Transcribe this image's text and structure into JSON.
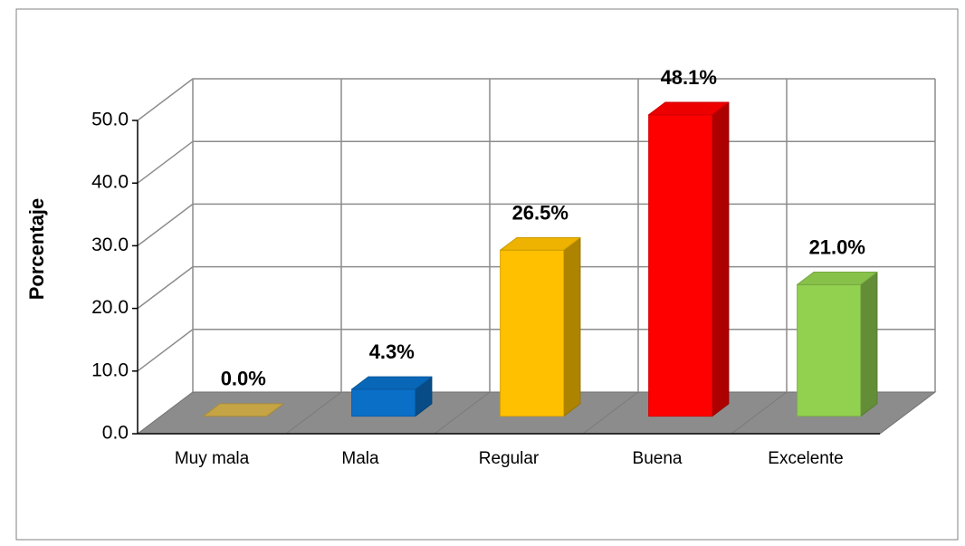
{
  "chart_data": {
    "type": "bar3d",
    "y_label": "Porcentaje",
    "categories": [
      "Muy mala",
      "Mala",
      "Regular",
      "Buena",
      "Excelente"
    ],
    "values": [
      0,
      4.3,
      26.5,
      48.1,
      21.0
    ],
    "value_labels": [
      "0.0%",
      "4.3%",
      "26.5%",
      "48.1%",
      "21.0%"
    ],
    "colors": [
      "#d4b04a",
      "#0a6fc6",
      "#ffc000",
      "#ff0000",
      "#92d050"
    ],
    "ylim": [
      0,
      50
    ],
    "yticks": [
      {
        "value": 0,
        "label": "0.0"
      },
      {
        "value": 10,
        "label": "10.0"
      },
      {
        "value": 20,
        "label": "20.0"
      },
      {
        "value": 30,
        "label": "30.0"
      },
      {
        "value": 40,
        "label": "40.0"
      },
      {
        "value": 50,
        "label": "50.0"
      }
    ],
    "grid": true
  }
}
